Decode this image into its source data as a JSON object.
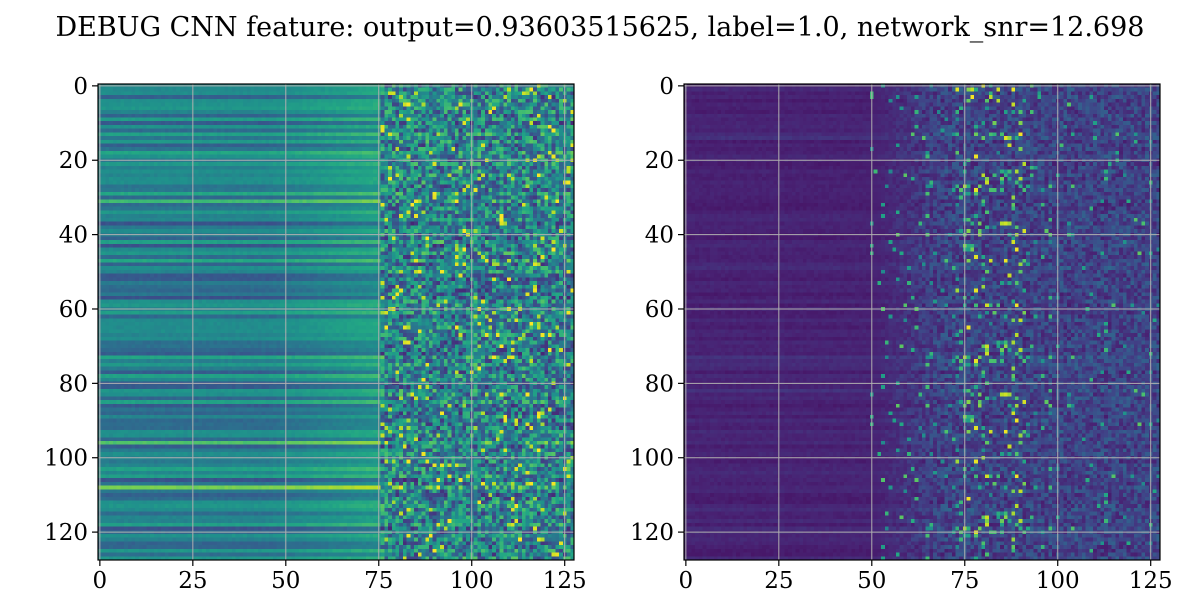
{
  "figure": {
    "suptitle": "DEBUG CNN feature: output=0.93603515625, label=1.0, network_snr=12.698"
  },
  "chart_data": [
    {
      "type": "heatmap",
      "title": "",
      "xlabel": "",
      "ylabel": "",
      "colormap": "viridis",
      "grid": true,
      "shape": [
        128,
        128
      ],
      "xlim": [
        -0.5,
        127.5
      ],
      "ylim": [
        127.5,
        -0.5
      ],
      "x_ticks": [
        0,
        25,
        50,
        75,
        100,
        125
      ],
      "x_tick_labels": [
        "0",
        "25",
        "50",
        "75",
        "100",
        "125"
      ],
      "y_ticks": [
        0,
        20,
        40,
        60,
        80,
        100,
        120
      ],
      "y_tick_labels": [
        "0",
        "20",
        "40",
        "60",
        "80",
        "100",
        "120"
      ],
      "description": "Left panel: horizontal bands of moderate values (teal/green) for columns 0–75, noisy higher values (green/yellow speckle) for columns 75–127"
    },
    {
      "type": "heatmap",
      "title": "",
      "xlabel": "",
      "ylabel": "",
      "colormap": "viridis",
      "grid": true,
      "shape": [
        128,
        128
      ],
      "xlim": [
        -0.5,
        127.5
      ],
      "ylim": [
        127.5,
        -0.5
      ],
      "x_ticks": [
        0,
        25,
        50,
        75,
        100,
        125
      ],
      "x_tick_labels": [
        "0",
        "25",
        "50",
        "75",
        "100",
        "125"
      ],
      "y_ticks": [
        0,
        20,
        40,
        60,
        80,
        100,
        120
      ],
      "y_tick_labels": [
        "0",
        "20",
        "40",
        "60",
        "80",
        "100",
        "120"
      ],
      "description": "Right panel: mostly dark purple low values for columns 0–50, sparse bright speckle (teal/yellow) for columns 50–127, strongest around columns 75–90"
    }
  ]
}
